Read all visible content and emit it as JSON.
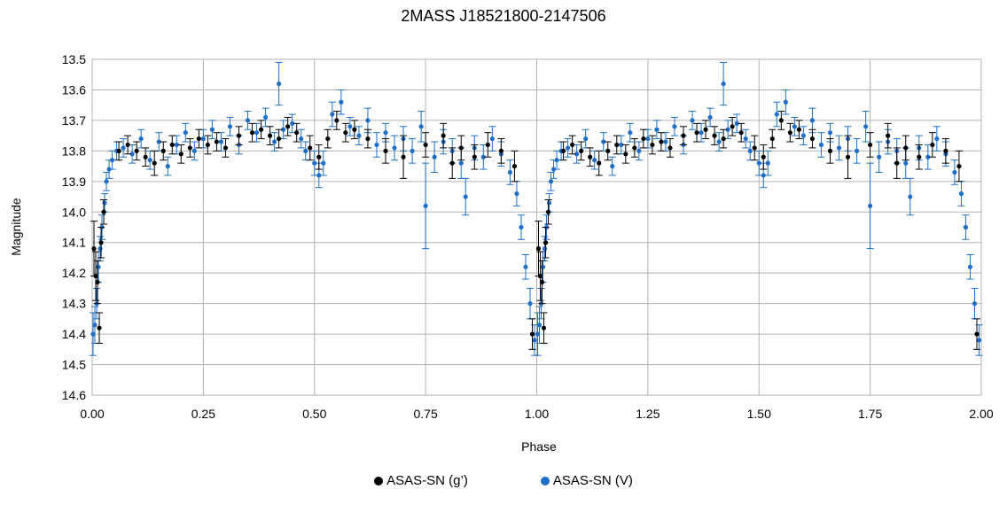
{
  "chart_data": {
    "type": "scatter",
    "title": "2MASS J18521800-2147506",
    "xlabel": "Phase",
    "ylabel": "Magnitude",
    "xlim": [
      0,
      2
    ],
    "ylim": [
      14.6,
      13.5
    ],
    "y_inverted": true,
    "grid": true,
    "error_bars": true,
    "legend_placement": "bottom",
    "xticks": [
      "0.00",
      "0.25",
      "0.50",
      "0.75",
      "1.00",
      "1.25",
      "1.50",
      "1.75",
      "2.00"
    ],
    "yticks": [
      "13.5",
      "13.6",
      "13.7",
      "13.8",
      "13.9",
      "14.0",
      "14.1",
      "14.2",
      "14.3",
      "14.4",
      "14.5",
      "14.6"
    ],
    "phase_folded_repeat": true,
    "series": [
      {
        "name": "ASAS-SN (g’)",
        "color": "#000000",
        "points": [
          [
            0.004,
            14.12
          ],
          [
            0.008,
            14.21
          ],
          [
            0.012,
            14.23
          ],
          [
            0.016,
            14.38
          ],
          [
            0.02,
            14.1
          ],
          [
            0.026,
            14.0
          ],
          [
            0.06,
            13.8
          ],
          [
            0.08,
            13.78
          ],
          [
            0.1,
            13.8
          ],
          [
            0.12,
            13.82
          ],
          [
            0.14,
            13.84
          ],
          [
            0.16,
            13.8
          ],
          [
            0.18,
            13.78
          ],
          [
            0.2,
            13.81
          ],
          [
            0.22,
            13.79
          ],
          [
            0.24,
            13.76
          ],
          [
            0.26,
            13.78
          ],
          [
            0.28,
            13.77
          ],
          [
            0.3,
            13.79
          ],
          [
            0.33,
            13.75
          ],
          [
            0.36,
            13.74
          ],
          [
            0.38,
            13.73
          ],
          [
            0.4,
            13.75
          ],
          [
            0.42,
            13.76
          ],
          [
            0.44,
            13.72
          ],
          [
            0.46,
            13.74
          ],
          [
            0.49,
            13.79
          ],
          [
            0.51,
            13.82
          ],
          [
            0.53,
            13.76
          ],
          [
            0.55,
            13.7
          ],
          [
            0.57,
            13.74
          ],
          [
            0.59,
            13.73
          ],
          [
            0.62,
            13.76
          ],
          [
            0.66,
            13.8
          ],
          [
            0.7,
            13.82
          ],
          [
            0.75,
            13.78
          ],
          [
            0.79,
            13.75
          ],
          [
            0.81,
            13.84
          ],
          [
            0.83,
            13.79
          ],
          [
            0.86,
            13.82
          ],
          [
            0.89,
            13.78
          ],
          [
            0.92,
            13.8
          ],
          [
            0.95,
            13.85
          ],
          [
            0.99,
            14.4
          ]
        ],
        "errors": [
          0.09,
          0.08,
          0.07,
          0.05,
          0.05,
          0.04,
          0.03,
          0.03,
          0.03,
          0.03,
          0.04,
          0.03,
          0.03,
          0.03,
          0.03,
          0.03,
          0.03,
          0.03,
          0.03,
          0.03,
          0.03,
          0.03,
          0.03,
          0.03,
          0.03,
          0.03,
          0.04,
          0.04,
          0.03,
          0.03,
          0.03,
          0.03,
          0.03,
          0.04,
          0.07,
          0.04,
          0.04,
          0.05,
          0.04,
          0.04,
          0.04,
          0.04,
          0.05,
          0.05
        ]
      },
      {
        "name": "ASAS-SN (V)",
        "color": "#1f6fc6",
        "points": [
          [
            0.002,
            14.4
          ],
          [
            0.006,
            14.37
          ],
          [
            0.01,
            14.3
          ],
          [
            0.014,
            14.18
          ],
          [
            0.018,
            14.12
          ],
          [
            0.022,
            14.05
          ],
          [
            0.028,
            13.97
          ],
          [
            0.032,
            13.9
          ],
          [
            0.038,
            13.86
          ],
          [
            0.045,
            13.83
          ],
          [
            0.055,
            13.8
          ],
          [
            0.07,
            13.79
          ],
          [
            0.09,
            13.81
          ],
          [
            0.11,
            13.76
          ],
          [
            0.13,
            13.83
          ],
          [
            0.15,
            13.77
          ],
          [
            0.17,
            13.85
          ],
          [
            0.19,
            13.78
          ],
          [
            0.21,
            13.74
          ],
          [
            0.23,
            13.8
          ],
          [
            0.25,
            13.76
          ],
          [
            0.27,
            13.73
          ],
          [
            0.29,
            13.77
          ],
          [
            0.31,
            13.72
          ],
          [
            0.33,
            13.78
          ],
          [
            0.35,
            13.7
          ],
          [
            0.37,
            13.74
          ],
          [
            0.39,
            13.69
          ],
          [
            0.41,
            13.77
          ],
          [
            0.42,
            13.58
          ],
          [
            0.43,
            13.73
          ],
          [
            0.45,
            13.71
          ],
          [
            0.47,
            13.76
          ],
          [
            0.48,
            13.8
          ],
          [
            0.5,
            13.84
          ],
          [
            0.51,
            13.88
          ],
          [
            0.52,
            13.84
          ],
          [
            0.54,
            13.68
          ],
          [
            0.56,
            13.64
          ],
          [
            0.58,
            13.72
          ],
          [
            0.6,
            13.75
          ],
          [
            0.62,
            13.7
          ],
          [
            0.64,
            13.78
          ],
          [
            0.66,
            13.74
          ],
          [
            0.68,
            13.79
          ],
          [
            0.7,
            13.76
          ],
          [
            0.72,
            13.8
          ],
          [
            0.74,
            13.72
          ],
          [
            0.75,
            13.98
          ],
          [
            0.77,
            13.82
          ],
          [
            0.79,
            13.77
          ],
          [
            0.81,
            13.8
          ],
          [
            0.83,
            13.84
          ],
          [
            0.84,
            13.95
          ],
          [
            0.86,
            13.79
          ],
          [
            0.88,
            13.82
          ],
          [
            0.9,
            13.76
          ],
          [
            0.92,
            13.81
          ],
          [
            0.94,
            13.87
          ],
          [
            0.955,
            13.94
          ],
          [
            0.965,
            14.05
          ],
          [
            0.975,
            14.18
          ],
          [
            0.985,
            14.3
          ],
          [
            0.995,
            14.42
          ]
        ],
        "errors": [
          0.07,
          0.06,
          0.05,
          0.05,
          0.04,
          0.04,
          0.03,
          0.03,
          0.03,
          0.03,
          0.03,
          0.03,
          0.03,
          0.03,
          0.03,
          0.03,
          0.03,
          0.03,
          0.03,
          0.03,
          0.03,
          0.03,
          0.03,
          0.03,
          0.03,
          0.03,
          0.03,
          0.03,
          0.03,
          0.07,
          0.03,
          0.03,
          0.03,
          0.03,
          0.04,
          0.04,
          0.04,
          0.04,
          0.04,
          0.03,
          0.03,
          0.04,
          0.04,
          0.03,
          0.04,
          0.04,
          0.04,
          0.05,
          0.14,
          0.05,
          0.04,
          0.04,
          0.05,
          0.06,
          0.04,
          0.04,
          0.04,
          0.04,
          0.04,
          0.04,
          0.04,
          0.04,
          0.05,
          0.05
        ]
      }
    ]
  }
}
